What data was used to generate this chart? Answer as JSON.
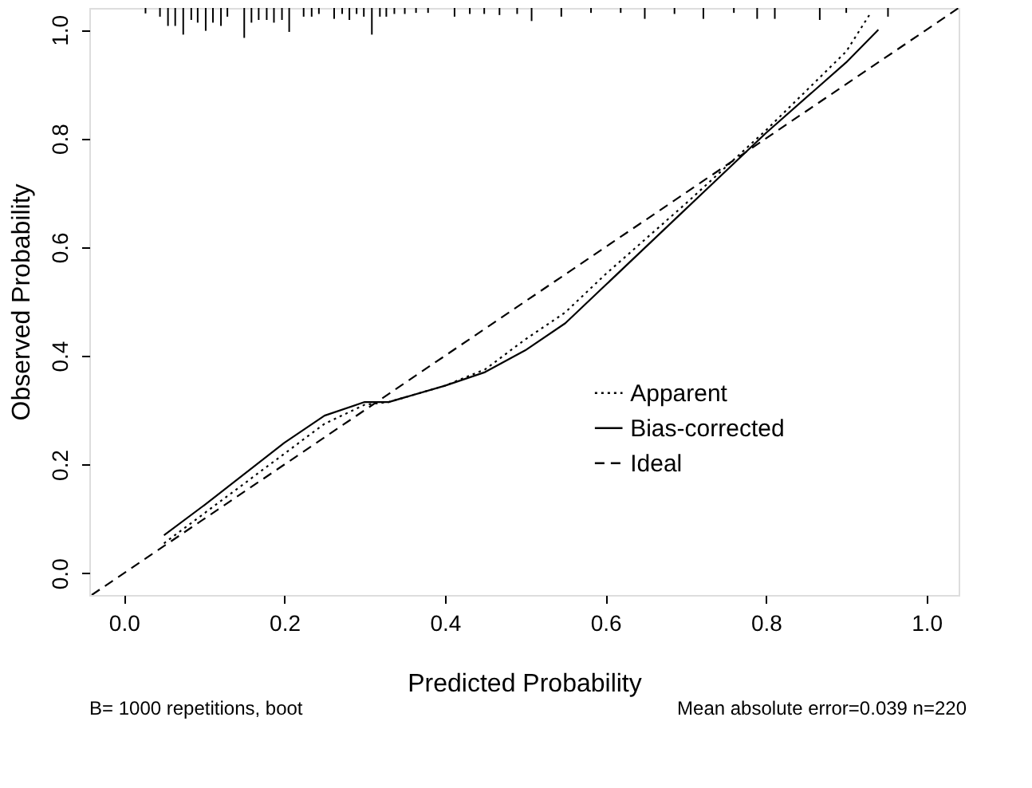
{
  "chart_data": {
    "type": "line",
    "xlabel": "Predicted Probability",
    "ylabel": "Observed Probability",
    "xlim": [
      -0.043,
      1.04
    ],
    "ylim": [
      -0.04,
      1.04
    ],
    "xticks": [
      {
        "value": 0,
        "label": "0.0"
      },
      0.2,
      0.4,
      0.6,
      0.8,
      {
        "value": 1,
        "label": "1.0"
      }
    ],
    "yticks": [
      {
        "value": 0,
        "label": "0.0"
      },
      0.2,
      0.4,
      0.6,
      0.8,
      {
        "value": 1,
        "label": "1.0"
      }
    ],
    "grid": false,
    "legend": "bottom right",
    "annotations": [
      "B= 1000 repetitions, boot",
      "Mean absolute error=0.039 n=220"
    ],
    "series": [
      {
        "name": "Apparent",
        "color": "#000000",
        "line_style": "dotted",
        "x": [
          0.05,
          0.1,
          0.2,
          0.25,
          0.3,
          0.33,
          0.4,
          0.45,
          0.5,
          0.55,
          0.6,
          0.7,
          0.8,
          0.9,
          0.93
        ],
        "values": [
          0.055,
          0.11,
          0.22,
          0.275,
          0.31,
          0.315,
          0.345,
          0.375,
          0.43,
          0.48,
          0.55,
          0.68,
          0.815,
          0.96,
          1.03
        ]
      },
      {
        "name": "Bias-corrected",
        "color": "#000000",
        "line_style": "solid",
        "x": [
          0.05,
          0.1,
          0.2,
          0.25,
          0.3,
          0.33,
          0.4,
          0.45,
          0.5,
          0.55,
          0.6,
          0.7,
          0.8,
          0.9,
          0.94
        ],
        "values": [
          0.07,
          0.125,
          0.24,
          0.29,
          0.315,
          0.315,
          0.345,
          0.37,
          0.41,
          0.46,
          0.53,
          0.67,
          0.81,
          0.94,
          1.0
        ]
      },
      {
        "name": "Ideal",
        "color": "#000000",
        "line_style": "dashed",
        "x": [
          -0.04,
          1.04
        ],
        "values": [
          -0.04,
          1.04
        ]
      },
      {
        "type": "bar",
        "color": "#000000",
        "x": [
          0.027,
          0.045,
          0.055,
          0.064,
          0.074,
          0.084,
          0.092,
          0.102,
          0.111,
          0.121,
          0.129,
          0.15,
          0.159,
          0.168,
          0.178,
          0.187,
          0.197,
          0.206,
          0.224,
          0.234,
          0.243,
          0.262,
          0.272,
          0.281,
          0.29,
          0.299,
          0.309,
          0.319,
          0.327,
          0.337,
          0.35,
          0.364,
          0.379,
          0.412,
          0.431,
          0.449,
          0.468,
          0.49,
          0.508,
          0.545,
          0.582,
          0.619,
          0.649,
          0.686,
          0.722,
          0.76,
          0.789,
          0.811,
          0.867,
          0.9,
          0.952
        ],
        "base": [
          1.04,
          1.04,
          1.04,
          1.04,
          1.04,
          1.04,
          1.04,
          1.04,
          1.04,
          1.04,
          1.04,
          1.04,
          1.04,
          1.04,
          1.04,
          1.04,
          1.04,
          1.04,
          1.04,
          1.04,
          1.04,
          1.04,
          1.04,
          1.04,
          1.04,
          1.04,
          1.04,
          1.04,
          1.04,
          1.04,
          1.04,
          1.04,
          1.04,
          1.04,
          1.04,
          1.04,
          1.04,
          1.04,
          1.04,
          1.04,
          1.04,
          1.04,
          1.04,
          1.04,
          1.04,
          1.04,
          1.04,
          1.04,
          1.04,
          1.04,
          1.04
        ],
        "values": [
          -0.01,
          -0.016,
          -0.033,
          -0.033,
          -0.049,
          -0.022,
          -0.027,
          -0.042,
          -0.027,
          -0.033,
          -0.016,
          -0.055,
          -0.027,
          -0.022,
          -0.022,
          -0.027,
          -0.022,
          -0.044,
          -0.016,
          -0.016,
          -0.011,
          -0.02,
          -0.011,
          -0.022,
          -0.011,
          -0.016,
          -0.049,
          -0.016,
          -0.016,
          -0.011,
          -0.011,
          -0.009,
          -0.009,
          -0.016,
          -0.011,
          -0.011,
          -0.013,
          -0.011,
          -0.024,
          -0.016,
          -0.009,
          -0.009,
          -0.02,
          -0.011,
          -0.02,
          -0.009,
          -0.02,
          -0.02,
          -0.022,
          -0.009,
          -0.016
        ]
      }
    ]
  }
}
